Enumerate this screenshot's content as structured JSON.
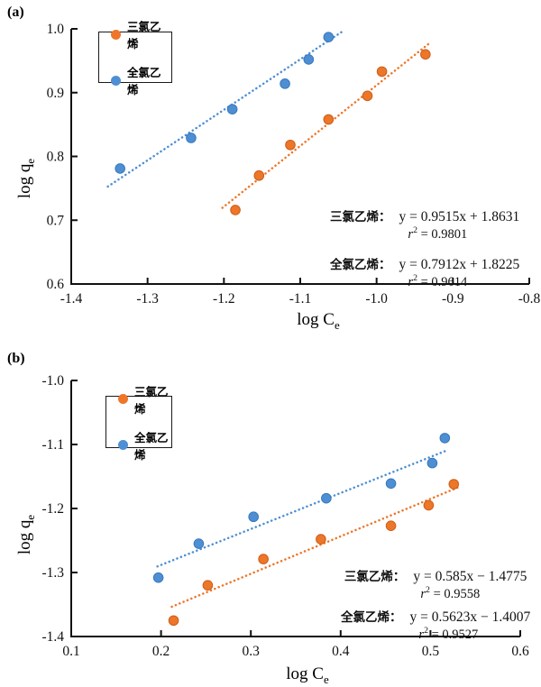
{
  "panels": {
    "a_label": "(a)",
    "b_label": "(b)"
  },
  "colors": {
    "orange": "#ED7629",
    "orange_edge": "#CB5E18",
    "blue": "#4E8FD3",
    "blue_edge": "#3878BC",
    "axis": "#111111"
  },
  "chart_data": [
    {
      "id": "a",
      "type": "scatter",
      "panel_label": "(a)",
      "xlabel": {
        "text": "log C",
        "sub": "e"
      },
      "ylabel": {
        "text": "log q",
        "sub": "e"
      },
      "xlim": [
        -1.4,
        -0.8
      ],
      "ylim": [
        0.6,
        1.0
      ],
      "x_ticks": [
        "-1.4",
        "-1.3",
        "-1.2",
        "-1.1",
        "-1.0",
        "-0.9",
        "-0.8"
      ],
      "y_ticks": [
        "0.6",
        "0.7",
        "0.8",
        "0.9",
        "1.0"
      ],
      "grid": "off",
      "legend_position": "upper-left",
      "legend": [
        {
          "label": "三氯乙烯",
          "color": "#ED7629"
        },
        {
          "label": "全氯乙烯",
          "color": "#4E8FD3"
        }
      ],
      "series": [
        {
          "name": "三氯乙烯",
          "color": "#ED7629",
          "edge": "#CB5E18",
          "points": [
            [
              -1.185,
              0.716
            ],
            [
              -1.154,
              0.77
            ],
            [
              -1.113,
              0.818
            ],
            [
              -1.063,
              0.858
            ],
            [
              -1.012,
              0.895
            ],
            [
              -0.993,
              0.933
            ],
            [
              -0.936,
              0.96
            ]
          ],
          "trend": {
            "slope": 0.9515,
            "intercept": 1.8631,
            "x_range": [
              -1.202,
              -0.93
            ]
          }
        },
        {
          "name": "全氯乙烯",
          "color": "#4E8FD3",
          "edge": "#3878BC",
          "points": [
            [
              -1.336,
              0.781
            ],
            [
              -1.243,
              0.829
            ],
            [
              -1.189,
              0.874
            ],
            [
              -1.12,
              0.914
            ],
            [
              -1.089,
              0.952
            ],
            [
              -1.063,
              0.987
            ]
          ],
          "trend": {
            "slope": 0.7912,
            "intercept": 1.8225,
            "x_range": [
              -1.352,
              -1.044
            ]
          }
        }
      ],
      "annotations": [
        {
          "label": "三氯乙烯：",
          "equation": "y = 0.9515x + 1.8631",
          "r2_prefix": "r",
          "r2_sup": "2",
          "r2_eq": "= 0.9801"
        },
        {
          "label": "全氯乙烯：",
          "equation": "y = 0.7912x + 1.8225",
          "r2_prefix": "r",
          "r2_sup": "2",
          "r2_eq": "= 0.9614"
        }
      ]
    },
    {
      "id": "b",
      "type": "scatter",
      "panel_label": "(b)",
      "xlabel": {
        "text": "log C",
        "sub": "e"
      },
      "ylabel": {
        "text": "log q",
        "sub": "e"
      },
      "xlim": [
        0.1,
        0.6
      ],
      "ylim": [
        -1.4,
        -1.0
      ],
      "x_ticks": [
        "0.1",
        "0.2",
        "0.3",
        "0.4",
        "0.5",
        "0.6"
      ],
      "y_ticks": [
        "-1.4",
        "-1.3",
        "-1.2",
        "-1.1",
        "-1.0"
      ],
      "grid": "off",
      "legend_position": "upper-left",
      "legend": [
        {
          "label": "三氯乙烯",
          "color": "#ED7629"
        },
        {
          "label": "全氯乙烯",
          "color": "#4E8FD3"
        }
      ],
      "series": [
        {
          "name": "三氯乙烯",
          "color": "#ED7629",
          "edge": "#CB5E18",
          "points": [
            [
              0.214,
              -1.375
            ],
            [
              0.252,
              -1.32
            ],
            [
              0.314,
              -1.279
            ],
            [
              0.378,
              -1.248
            ],
            [
              0.456,
              -1.227
            ],
            [
              0.498,
              -1.195
            ],
            [
              0.526,
              -1.162
            ]
          ],
          "trend": {
            "slope": 0.585,
            "intercept": -1.4775,
            "x_range": [
              0.212,
              0.53
            ]
          }
        },
        {
          "name": "全氯乙烯",
          "color": "#4E8FD3",
          "edge": "#3878BC",
          "points": [
            [
              0.197,
              -1.308
            ],
            [
              0.242,
              -1.255
            ],
            [
              0.303,
              -1.213
            ],
            [
              0.384,
              -1.184
            ],
            [
              0.456,
              -1.161
            ],
            [
              0.502,
              -1.129
            ],
            [
              0.516,
              -1.09
            ]
          ],
          "trend": {
            "slope": 0.5623,
            "intercept": -1.4007,
            "x_range": [
              0.196,
              0.518
            ]
          }
        }
      ],
      "annotations": [
        {
          "label": "三氯乙烯：",
          "equation": "y = 0.585x − 1.4775",
          "r2_prefix": "r",
          "r2_sup": "2",
          "r2_eq": "= 0.9558"
        },
        {
          "label": "全氯乙烯：",
          "equation": "y = 0.5623x − 1.4007",
          "r2_prefix": "r",
          "r2_sup": "2",
          "r2_eq": "= 0.9527"
        }
      ]
    }
  ]
}
